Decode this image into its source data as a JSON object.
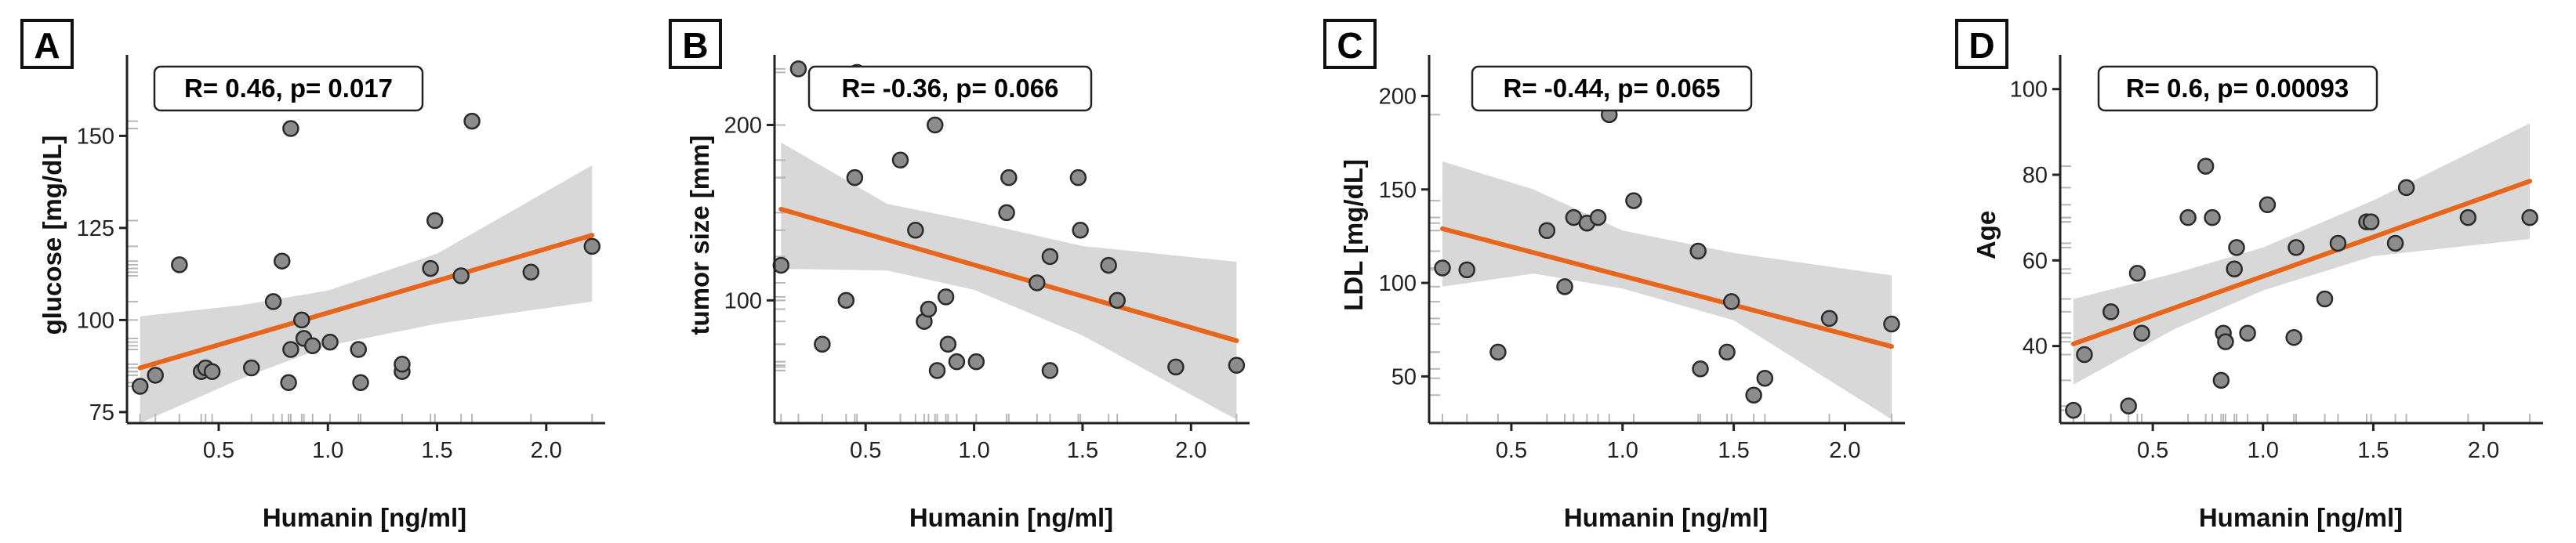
{
  "colors": {
    "fit_line": "#e8661c",
    "ci_band": "#d6d6d6",
    "point_fill": "#8c8c8c",
    "point_stroke": "#2b2b2b",
    "rug": "#b8b8b8",
    "axis": "#222222"
  },
  "chart_data": [
    {
      "panel": "A",
      "type": "scatter",
      "stat_label": "R= 0.46, p= 0.017",
      "xlabel": "Humanin [ng/ml]",
      "ylabel": "glucose [mg/dL]",
      "xlim": [
        0.08,
        2.27
      ],
      "ylim": [
        72,
        172
      ],
      "xticks": [
        0.5,
        1.0,
        1.5,
        2.0
      ],
      "xtick_labels": [
        "0.5",
        "1.0",
        "1.5",
        "2.0"
      ],
      "yticks": [
        75,
        100,
        125,
        150
      ],
      "ytick_labels": [
        "75",
        "100",
        "125",
        "150"
      ],
      "points": [
        {
          "x": 0.14,
          "y": 82
        },
        {
          "x": 0.21,
          "y": 85
        },
        {
          "x": 0.32,
          "y": 115
        },
        {
          "x": 0.42,
          "y": 86
        },
        {
          "x": 0.44,
          "y": 87
        },
        {
          "x": 0.47,
          "y": 86
        },
        {
          "x": 0.65,
          "y": 87
        },
        {
          "x": 0.75,
          "y": 105
        },
        {
          "x": 0.79,
          "y": 116
        },
        {
          "x": 0.82,
          "y": 83
        },
        {
          "x": 0.83,
          "y": 92
        },
        {
          "x": 0.83,
          "y": 152
        },
        {
          "x": 0.88,
          "y": 100
        },
        {
          "x": 0.89,
          "y": 95
        },
        {
          "x": 0.93,
          "y": 93
        },
        {
          "x": 1.01,
          "y": 94
        },
        {
          "x": 1.14,
          "y": 92
        },
        {
          "x": 1.15,
          "y": 83
        },
        {
          "x": 1.34,
          "y": 86
        },
        {
          "x": 1.34,
          "y": 88
        },
        {
          "x": 1.47,
          "y": 114
        },
        {
          "x": 1.49,
          "y": 127
        },
        {
          "x": 1.61,
          "y": 112
        },
        {
          "x": 1.66,
          "y": 154
        },
        {
          "x": 1.93,
          "y": 113
        },
        {
          "x": 2.21,
          "y": 120
        }
      ],
      "fit": {
        "x": [
          0.14,
          2.21
        ],
        "y": [
          87,
          123
        ]
      },
      "ci_band": {
        "x": [
          0.14,
          0.6,
          1.0,
          1.5,
          2.21
        ],
        "lower": [
          72,
          84,
          93,
          99,
          105
        ],
        "upper": [
          101,
          104,
          108,
          118,
          142
        ]
      }
    },
    {
      "panel": "B",
      "type": "scatter",
      "stat_label": "R= -0.36, p= 0.066",
      "xlabel": "Humanin [ng/ml]",
      "ylabel": "tumor size [mm]",
      "xlim": [
        0.08,
        2.27
      ],
      "ylim": [
        30,
        240
      ],
      "xticks": [
        0.5,
        1.0,
        1.5,
        2.0
      ],
      "xtick_labels": [
        "0.5",
        "1.0",
        "1.5",
        "2.0"
      ],
      "yticks": [
        100,
        200
      ],
      "ytick_labels": [
        "100",
        "200"
      ],
      "points": [
        {
          "x": 0.11,
          "y": 120
        },
        {
          "x": 0.19,
          "y": 232
        },
        {
          "x": 0.3,
          "y": 75
        },
        {
          "x": 0.41,
          "y": 100
        },
        {
          "x": 0.45,
          "y": 170
        },
        {
          "x": 0.46,
          "y": 230
        },
        {
          "x": 0.66,
          "y": 180
        },
        {
          "x": 0.73,
          "y": 140
        },
        {
          "x": 0.77,
          "y": 88
        },
        {
          "x": 0.79,
          "y": 95
        },
        {
          "x": 0.82,
          "y": 200
        },
        {
          "x": 0.83,
          "y": 60
        },
        {
          "x": 0.87,
          "y": 102
        },
        {
          "x": 0.88,
          "y": 75
        },
        {
          "x": 0.92,
          "y": 65
        },
        {
          "x": 1.01,
          "y": 65
        },
        {
          "x": 1.15,
          "y": 150
        },
        {
          "x": 1.16,
          "y": 170
        },
        {
          "x": 1.29,
          "y": 110
        },
        {
          "x": 1.35,
          "y": 60
        },
        {
          "x": 1.35,
          "y": 125
        },
        {
          "x": 1.48,
          "y": 170
        },
        {
          "x": 1.49,
          "y": 140
        },
        {
          "x": 1.62,
          "y": 120
        },
        {
          "x": 1.66,
          "y": 100
        },
        {
          "x": 1.93,
          "y": 62
        },
        {
          "x": 2.21,
          "y": 63
        }
      ],
      "fit": {
        "x": [
          0.11,
          2.21
        ],
        "y": [
          152,
          77
        ]
      },
      "ci_band": {
        "x": [
          0.11,
          0.6,
          1.0,
          1.5,
          2.21
        ],
        "lower": [
          118,
          117,
          106,
          80,
          32
        ],
        "upper": [
          190,
          155,
          145,
          131,
          122
        ]
      }
    },
    {
      "panel": "C",
      "type": "scatter",
      "stat_label": "R= -0.44, p= 0.065",
      "xlabel": "Humanin [ng/ml]",
      "ylabel": "LDL [mg/dL]",
      "xlim": [
        0.13,
        2.27
      ],
      "ylim": [
        25,
        222
      ],
      "xticks": [
        0.5,
        1.0,
        1.5,
        2.0
      ],
      "xtick_labels": [
        "0.5",
        "1.0",
        "1.5",
        "2.0"
      ],
      "yticks": [
        50,
        100,
        150,
        200
      ],
      "ytick_labels": [
        "50",
        "100",
        "150",
        "200"
      ],
      "points": [
        {
          "x": 0.19,
          "y": 108
        },
        {
          "x": 0.3,
          "y": 107
        },
        {
          "x": 0.44,
          "y": 63
        },
        {
          "x": 0.66,
          "y": 128
        },
        {
          "x": 0.74,
          "y": 98
        },
        {
          "x": 0.78,
          "y": 135
        },
        {
          "x": 0.84,
          "y": 132
        },
        {
          "x": 0.89,
          "y": 135
        },
        {
          "x": 0.94,
          "y": 190
        },
        {
          "x": 1.05,
          "y": 144
        },
        {
          "x": 1.34,
          "y": 117
        },
        {
          "x": 1.35,
          "y": 54
        },
        {
          "x": 1.47,
          "y": 63
        },
        {
          "x": 1.49,
          "y": 90
        },
        {
          "x": 1.59,
          "y": 40
        },
        {
          "x": 1.64,
          "y": 49
        },
        {
          "x": 1.93,
          "y": 81
        },
        {
          "x": 2.21,
          "y": 78
        }
      ],
      "fit": {
        "x": [
          0.19,
          2.21
        ],
        "y": [
          129,
          66
        ]
      },
      "ci_band": {
        "x": [
          0.19,
          0.6,
          1.0,
          1.5,
          2.21
        ],
        "lower": [
          98,
          105,
          97,
          80,
          27
        ],
        "upper": [
          165,
          150,
          128,
          116,
          104
        ]
      }
    },
    {
      "panel": "D",
      "type": "scatter",
      "stat_label": "R= 0.6, p= 0.00093",
      "xlabel": "Humanin [ng/ml]",
      "ylabel": "Age",
      "xlim": [
        0.08,
        2.27
      ],
      "ylim": [
        22,
        108
      ],
      "xticks": [
        0.5,
        1.0,
        1.5,
        2.0
      ],
      "xtick_labels": [
        "0.5",
        "1.0",
        "1.5",
        "2.0"
      ],
      "yticks": [
        40,
        60,
        80,
        100
      ],
      "ytick_labels": [
        "40",
        "60",
        "80",
        "100"
      ],
      "points": [
        {
          "x": 0.14,
          "y": 25
        },
        {
          "x": 0.19,
          "y": 38
        },
        {
          "x": 0.31,
          "y": 48
        },
        {
          "x": 0.39,
          "y": 26
        },
        {
          "x": 0.43,
          "y": 57
        },
        {
          "x": 0.45,
          "y": 43
        },
        {
          "x": 0.66,
          "y": 70
        },
        {
          "x": 0.74,
          "y": 82
        },
        {
          "x": 0.77,
          "y": 70
        },
        {
          "x": 0.81,
          "y": 32
        },
        {
          "x": 0.82,
          "y": 43
        },
        {
          "x": 0.83,
          "y": 41
        },
        {
          "x": 0.87,
          "y": 58
        },
        {
          "x": 0.88,
          "y": 63
        },
        {
          "x": 0.93,
          "y": 43
        },
        {
          "x": 1.02,
          "y": 73
        },
        {
          "x": 1.14,
          "y": 42
        },
        {
          "x": 1.15,
          "y": 63
        },
        {
          "x": 1.28,
          "y": 51
        },
        {
          "x": 1.34,
          "y": 64
        },
        {
          "x": 1.47,
          "y": 69
        },
        {
          "x": 1.49,
          "y": 69
        },
        {
          "x": 1.6,
          "y": 64
        },
        {
          "x": 1.65,
          "y": 77
        },
        {
          "x": 1.93,
          "y": 70
        },
        {
          "x": 2.21,
          "y": 70
        }
      ],
      "fit": {
        "x": [
          0.14,
          2.21
        ],
        "y": [
          40.5,
          78.5
        ]
      },
      "ci_band": {
        "x": [
          0.14,
          0.6,
          1.0,
          1.5,
          2.21
        ],
        "lower": [
          31,
          44,
          53,
          61,
          65
        ],
        "upper": [
          51,
          57,
          63,
          74,
          92
        ]
      }
    }
  ]
}
